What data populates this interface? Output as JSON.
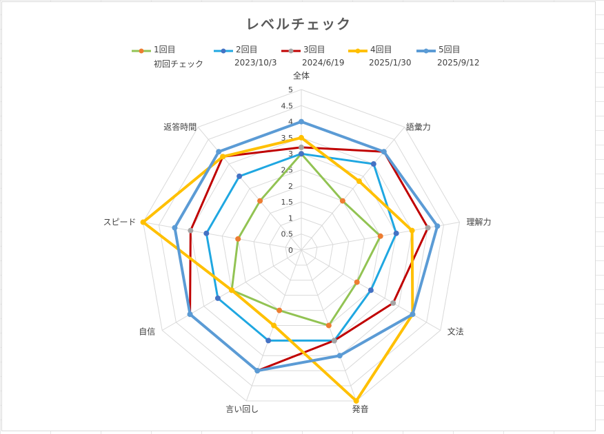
{
  "chart_data": {
    "type": "radar",
    "title": "レベルチェック",
    "axes": [
      "全体",
      "語彙力",
      "理解力",
      "文法",
      "発音",
      "言い回し",
      "自信",
      "スピード",
      "返答時間"
    ],
    "rmax": 5,
    "ticks": [
      "0",
      "0.5",
      "1",
      "1.5",
      "2",
      "2.5",
      "3",
      "3.5",
      "4",
      "4.5",
      "5"
    ],
    "grid": true,
    "legend_position": "top",
    "series": [
      {
        "name": "1回目",
        "subtitle": "初回チェック",
        "color": "#92c353",
        "marker_color": "#ed7d31",
        "width": 3,
        "values": [
          3,
          2,
          2.5,
          2,
          2.5,
          2,
          2.5,
          2,
          2
        ]
      },
      {
        "name": "2回目",
        "subtitle": "2023/10/3",
        "color": "#1fa7e1",
        "marker_color": "#4472c4",
        "width": 3,
        "values": [
          3,
          3.5,
          3,
          2.5,
          3,
          3,
          3,
          3,
          3
        ]
      },
      {
        "name": "3回目",
        "subtitle": "2024/6/19",
        "color": "#c00000",
        "marker_color": "#a5a5a5",
        "width": 3,
        "values": [
          3.2,
          4,
          4,
          3.3,
          3,
          4,
          4,
          3.5,
          3.8
        ]
      },
      {
        "name": "4回目",
        "subtitle": "2025/1/30",
        "color": "#ffc000",
        "marker_color": "#ffc000",
        "width": 4,
        "values": [
          3.5,
          2.8,
          3.5,
          4,
          5,
          2.5,
          2.5,
          5,
          3.8
        ]
      },
      {
        "name": "5回目",
        "subtitle": "2025/9/12",
        "color": "#5b9bd5",
        "marker_color": "#5b9bd5",
        "width": 4,
        "values": [
          4,
          4,
          4.3,
          4,
          3.5,
          4,
          4,
          4,
          4
        ]
      }
    ]
  }
}
